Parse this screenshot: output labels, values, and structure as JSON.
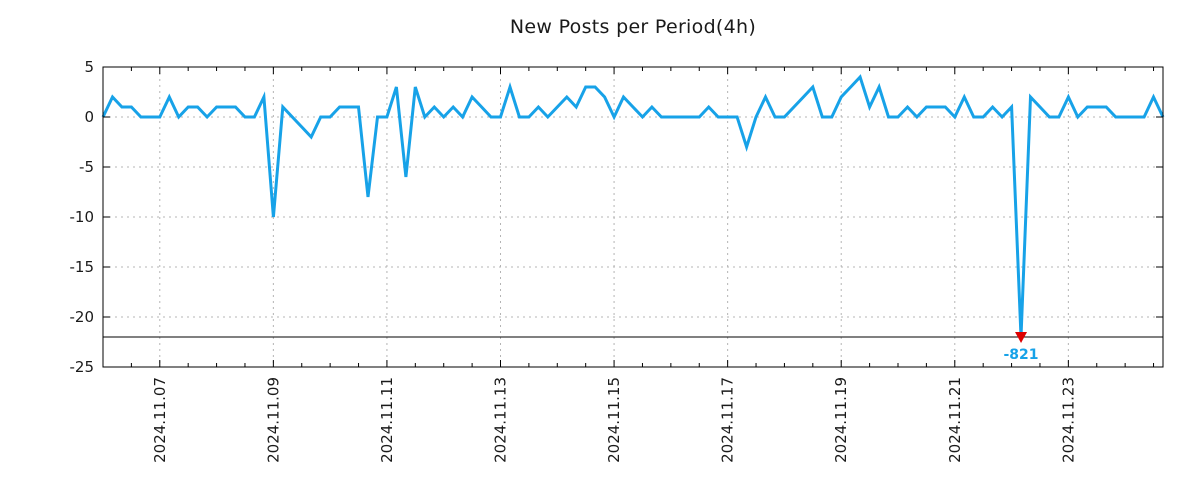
{
  "chart_data": {
    "type": "line",
    "title": "New Posts per Period(4h)",
    "xlabel": "",
    "ylabel": "",
    "x_start": "2024-11-06 00:00",
    "x_step_hours": 4,
    "values": [
      0,
      2,
      1,
      1,
      0,
      0,
      0,
      2,
      0,
      1,
      1,
      0,
      1,
      1,
      1,
      0,
      0,
      2,
      -10,
      1,
      0,
      -1,
      -2,
      0,
      0,
      1,
      1,
      1,
      -8,
      0,
      0,
      3,
      -6,
      3,
      0,
      1,
      0,
      1,
      0,
      2,
      1,
      0,
      0,
      3,
      0,
      0,
      1,
      0,
      1,
      2,
      1,
      3,
      3,
      2,
      0,
      2,
      1,
      0,
      1,
      0,
      0,
      0,
      0,
      0,
      1,
      0,
      0,
      0,
      -3,
      0,
      2,
      0,
      0,
      1,
      2,
      3,
      0,
      0,
      2,
      3,
      4,
      1,
      3,
      0,
      0,
      1,
      0,
      1,
      1,
      1,
      0,
      2,
      0,
      0,
      1,
      0,
      1,
      -821,
      2,
      1,
      0,
      0,
      2,
      0,
      1,
      1,
      1,
      0,
      0,
      0,
      0,
      2,
      0
    ],
    "ylim": [
      -25,
      5
    ],
    "y_ticks": [
      5,
      0,
      -5,
      -10,
      -15,
      -20,
      -25
    ],
    "x_tick_labels": [
      "2024.11.07",
      "2024.11.09",
      "2024.11.11",
      "2024.11.13",
      "2024.11.15",
      "2024.11.17",
      "2024.11.19",
      "2024.11.21",
      "2024.11.23"
    ],
    "x_tick_period_indices": [
      6,
      18,
      30,
      42,
      54,
      66,
      78,
      90,
      102
    ],
    "minor_tick_every_periods": 3,
    "grid": true,
    "legend_position": "none",
    "clip_line_y": -22,
    "min_annotation": {
      "label": "-821",
      "value": -821,
      "marker_icon": "red-triangle-down"
    },
    "colors": {
      "line": "#17a2e8",
      "marker": "#dd0000",
      "grid": "#b4b4b4",
      "axis": "#000000",
      "annotation_text": "#17a2e8",
      "text": "#1a1a1a"
    }
  }
}
